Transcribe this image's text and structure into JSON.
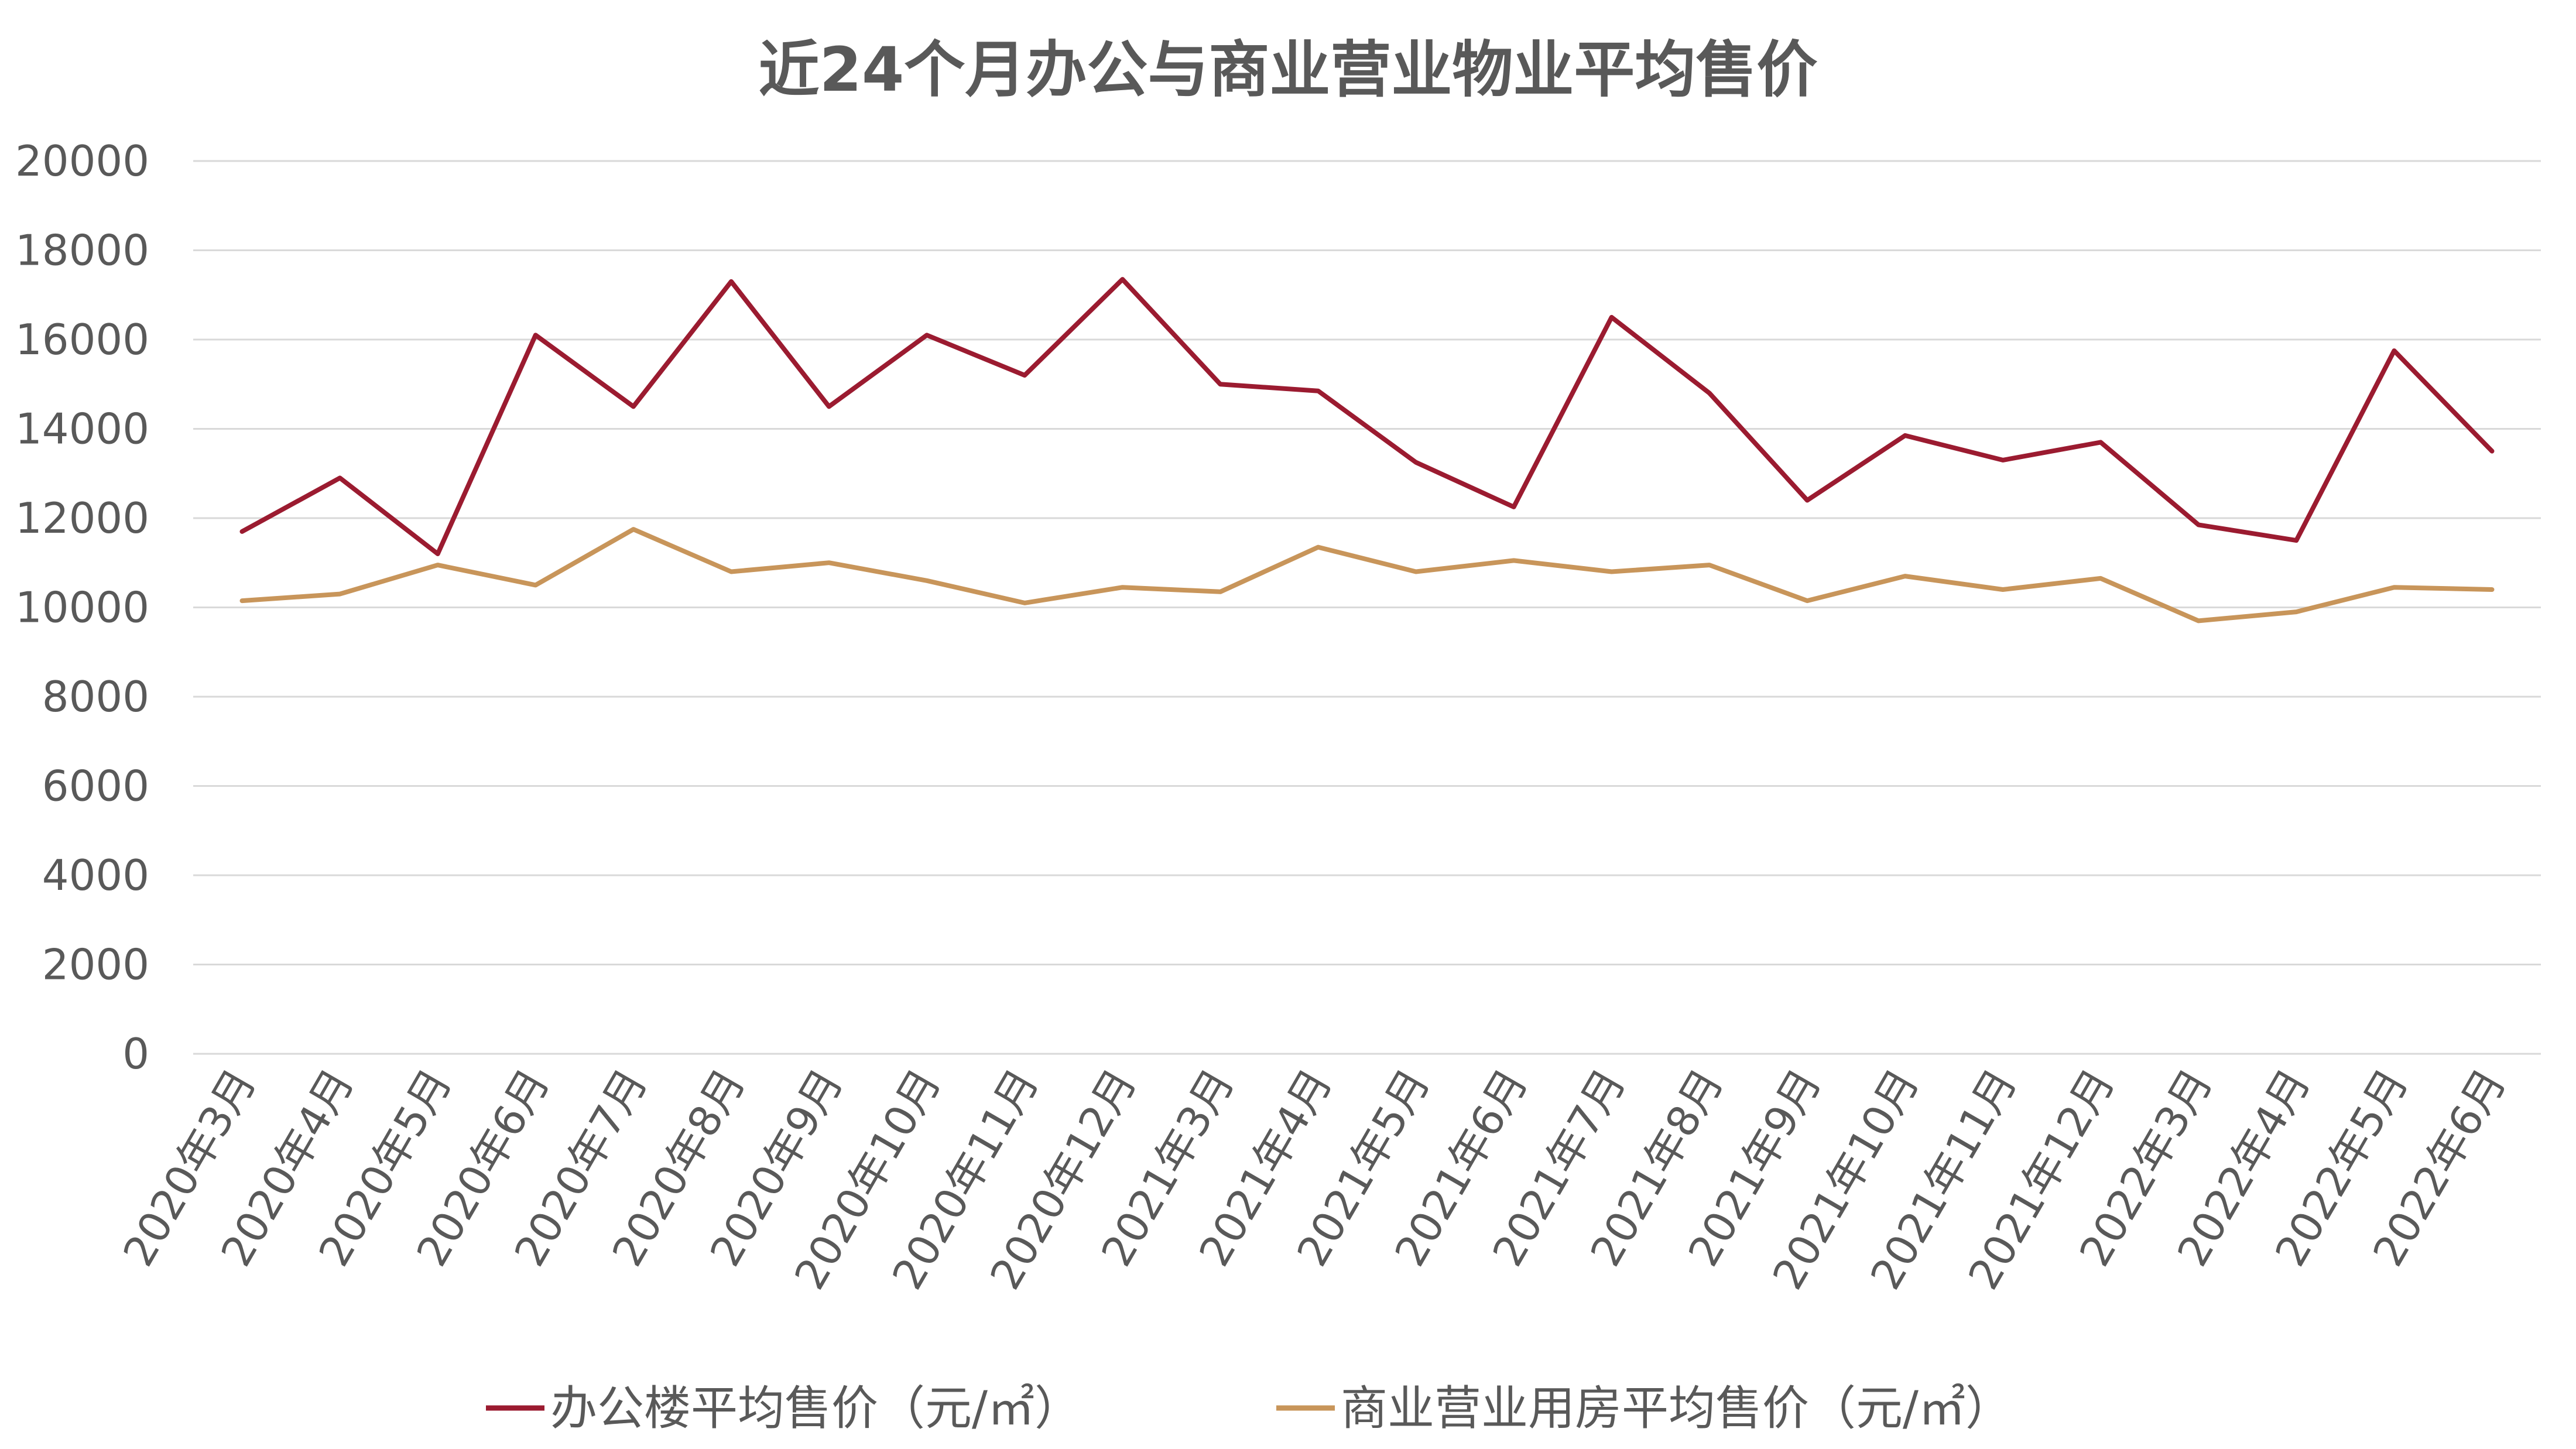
{
  "chart_data": {
    "type": "line",
    "title": "近24个月办公与商业营业物业平均售价",
    "xlabel": "",
    "ylabel": "",
    "ylim": [
      0,
      20000
    ],
    "yticks": [
      "0",
      "2000",
      "4000",
      "6000",
      "8000",
      "10000",
      "12000",
      "14000",
      "16000",
      "18000",
      "20000"
    ],
    "grid": true,
    "legend_position": "bottom",
    "categories": [
      "2020年3月",
      "2020年4月",
      "2020年5月",
      "2020年6月",
      "2020年7月",
      "2020年8月",
      "2020年9月",
      "2020年10月",
      "2020年11月",
      "2020年12月",
      "2021年3月",
      "2021年4月",
      "2021年5月",
      "2021年6月",
      "2021年7月",
      "2021年8月",
      "2021年9月",
      "2021年10月",
      "2021年11月",
      "2021年12月",
      "2022年3月",
      "2022年4月",
      "2022年5月",
      "2022年6月"
    ],
    "series": [
      {
        "name": "办公楼平均售价（元/㎡）",
        "color": "#9b1b30",
        "values": [
          11700,
          12900,
          11200,
          16100,
          14500,
          17300,
          14500,
          16100,
          15200,
          17350,
          15000,
          14850,
          13250,
          12250,
          16500,
          14800,
          12400,
          13850,
          13300,
          13700,
          11850,
          11500,
          15750,
          13500
        ]
      },
      {
        "name": "商业营业用房平均售价（元/㎡）",
        "color": "#c8955a",
        "values": [
          10150,
          10300,
          10950,
          10500,
          11750,
          10800,
          11000,
          10600,
          10100,
          10450,
          10350,
          11350,
          10800,
          11050,
          10800,
          10950,
          10150,
          10700,
          10400,
          10650,
          9700,
          9900,
          10450,
          10400
        ]
      }
    ]
  }
}
